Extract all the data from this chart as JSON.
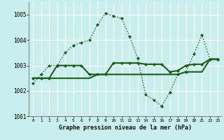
{
  "title": "Graphe pression niveau de la mer (hPa)",
  "background_color": "#c8eeed",
  "grid_color": "#ffffff",
  "line_color": "#1e5c1e",
  "x_labels": [
    "0",
    "1",
    "2",
    "3",
    "4",
    "5",
    "6",
    "7",
    "8",
    "9",
    "10",
    "11",
    "12",
    "13",
    "14",
    "15",
    "16",
    "17",
    "18",
    "19",
    "20",
    "21",
    "22",
    "23"
  ],
  "series1": [
    1002.3,
    1002.65,
    1003.0,
    1003.0,
    1003.5,
    1003.8,
    1003.9,
    1004.0,
    1004.6,
    1005.05,
    1004.95,
    1004.85,
    1004.15,
    1003.3,
    1001.85,
    1001.65,
    1001.4,
    1001.95,
    1002.65,
    1002.75,
    1003.45,
    1004.2,
    1003.25,
    1003.25
  ],
  "series2_x": [
    0,
    1,
    2,
    3,
    4,
    5,
    6,
    7,
    8,
    9,
    10,
    11,
    12,
    13,
    14,
    15,
    16,
    17,
    18,
    19,
    20,
    21,
    22,
    23
  ],
  "series2": [
    1002.5,
    1002.5,
    1002.5,
    1003.0,
    1003.0,
    1003.0,
    1003.0,
    1002.65,
    1002.65,
    1002.65,
    1003.1,
    1003.1,
    1003.1,
    1003.1,
    1003.05,
    1003.05,
    1003.05,
    1002.75,
    1002.8,
    1003.0,
    1003.05,
    1003.05,
    1003.25,
    1003.25
  ],
  "series3_x": [
    0,
    1,
    2,
    3,
    4,
    5,
    6,
    7,
    8,
    9,
    10,
    11,
    12,
    13,
    14,
    15,
    16,
    17,
    18,
    19,
    20,
    21,
    22,
    23
  ],
  "series3": [
    1002.5,
    1002.5,
    1002.5,
    1002.5,
    1002.5,
    1002.5,
    1002.5,
    1002.5,
    1002.65,
    1002.65,
    1002.65,
    1002.65,
    1002.65,
    1002.65,
    1002.65,
    1002.65,
    1002.65,
    1002.65,
    1002.65,
    1002.75,
    1002.75,
    1002.75,
    1003.25,
    1003.25
  ],
  "ylim": [
    1001.0,
    1005.5
  ],
  "yticks": [
    1001,
    1002,
    1003,
    1004,
    1005
  ],
  "marker": "D",
  "marker_size": 2.5,
  "lw1": 1.0,
  "lw2": 1.5,
  "lw3": 1.5
}
